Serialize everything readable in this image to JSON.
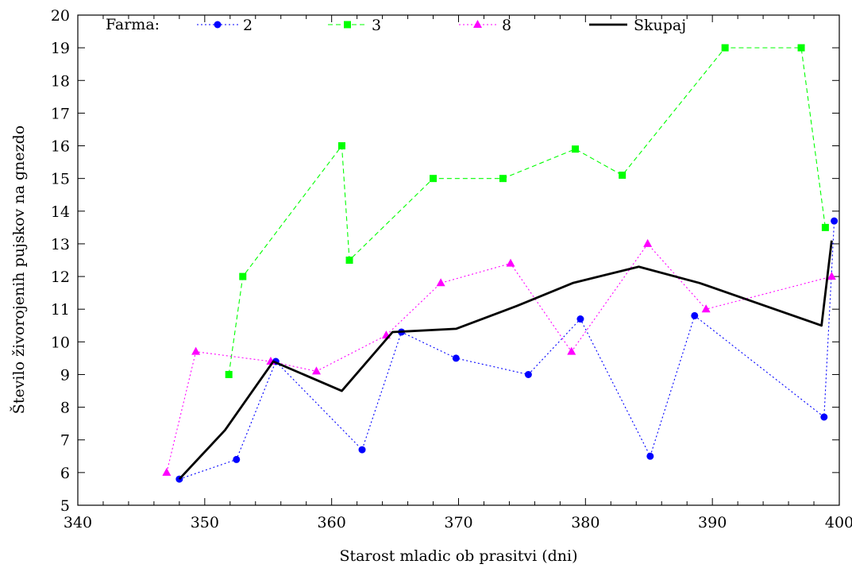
{
  "chart_data": {
    "type": "line",
    "title": "",
    "xlabel": "Starost mladic ob prasitvi (dni)",
    "ylabel": "Število živorojenih pujskov na gnezdo",
    "xlim": [
      340,
      400
    ],
    "ylim": [
      5,
      20
    ],
    "xticks": [
      340,
      350,
      360,
      370,
      380,
      390,
      400
    ],
    "yticks": [
      5,
      6,
      7,
      8,
      9,
      10,
      11,
      12,
      13,
      14,
      15,
      16,
      17,
      18,
      19,
      20
    ],
    "grid": false,
    "legend": {
      "title": "Farma:",
      "placement": "top"
    },
    "series": [
      {
        "name": "2",
        "color": "#0000ff",
        "line_style": "dotted",
        "marker": "circle",
        "x": [
          348.0,
          352.5,
          355.6,
          362.4,
          365.5,
          369.8,
          375.5,
          379.6,
          385.1,
          388.6,
          398.8,
          399.6
        ],
        "y": [
          5.8,
          6.4,
          9.4,
          6.7,
          10.3,
          9.5,
          9.0,
          10.7,
          6.5,
          10.8,
          7.7,
          13.7
        ]
      },
      {
        "name": "3",
        "color": "#00ff00",
        "line_style": "dashed",
        "marker": "square",
        "x": [
          351.9,
          353.0,
          360.8,
          361.4,
          368.0,
          373.5,
          379.2,
          382.9,
          391.0,
          397.0,
          398.9
        ],
        "y": [
          9.0,
          12.0,
          16.0,
          12.5,
          15.0,
          15.0,
          15.9,
          15.1,
          19.0,
          19.0,
          13.5
        ]
      },
      {
        "name": "8",
        "color": "#ff00ff",
        "line_style": "dotted",
        "marker": "triangle",
        "x": [
          347.0,
          349.3,
          355.2,
          358.8,
          364.3,
          368.6,
          374.1,
          378.9,
          384.9,
          389.5,
          399.4
        ],
        "y": [
          6.0,
          9.7,
          9.4,
          9.1,
          10.2,
          11.8,
          12.4,
          9.7,
          13.0,
          11.0,
          12.0
        ]
      },
      {
        "name": "Skupaj",
        "color": "#000000",
        "line_style": "solid",
        "marker": "none",
        "x": [
          348.0,
          351.6,
          355.4,
          360.8,
          364.8,
          369.8,
          374.6,
          379.0,
          384.2,
          389.0,
          398.6,
          399.4
        ],
        "y": [
          5.8,
          7.3,
          9.4,
          8.5,
          10.3,
          10.4,
          11.1,
          11.8,
          12.3,
          11.8,
          10.5,
          13.1
        ]
      }
    ]
  }
}
